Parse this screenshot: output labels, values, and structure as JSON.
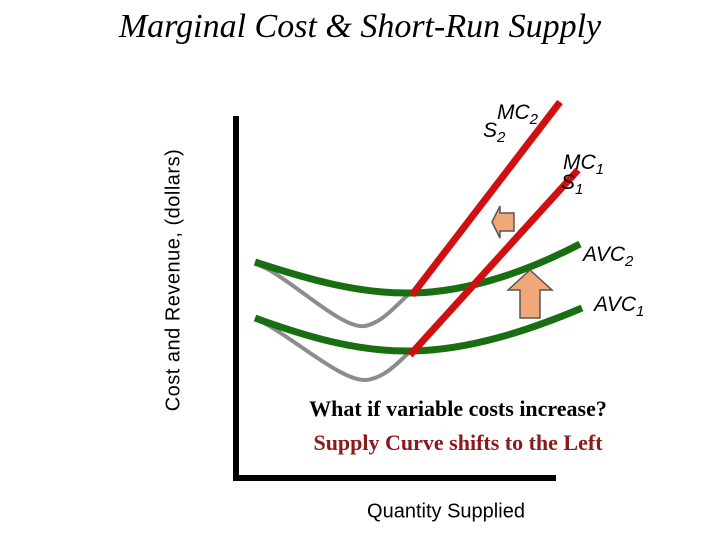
{
  "title": "Marginal Cost & Short-Run Supply",
  "axes": {
    "y_label": "Cost and Revenue, (dollars)",
    "x_label": "Quantity Supplied"
  },
  "curve_labels": {
    "mc2": {
      "text": "MC",
      "sub": "2"
    },
    "s2": {
      "text": "S",
      "sub": "2"
    },
    "mc1": {
      "text": "MC",
      "sub": "1"
    },
    "s1": {
      "text": "S",
      "sub": "1"
    },
    "avc2": {
      "text": "AVC",
      "sub": "2"
    },
    "avc1": {
      "text": "AVC",
      "sub": "1"
    }
  },
  "question": "What if variable costs increase?",
  "answer": "Supply Curve shifts to the Left",
  "colors": {
    "mc_curve": "#d01010",
    "avc_curve": "#1a6e12",
    "atc_curve": "#8c8c8c",
    "up_arrow": "#f0a878",
    "left_arrow": "#f0a878",
    "answer_text": "#8b1a1a"
  }
}
